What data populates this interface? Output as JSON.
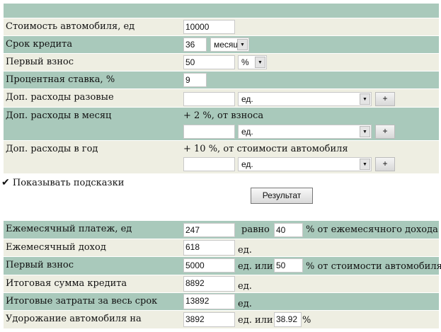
{
  "form": {
    "cost": {
      "label": "Стоимость автомобиля, ед",
      "value": "10000"
    },
    "term": {
      "label": "Срок кредита",
      "value": "36",
      "unit": "месяц"
    },
    "first": {
      "label": "Первый взнос",
      "value": "50",
      "unit": "%"
    },
    "rate": {
      "label": "Процентная ставка, %",
      "value": "9"
    },
    "once": {
      "label": "Доп. расходы разовые",
      "value": "",
      "unit": "ед.",
      "add": "+"
    },
    "monthly": {
      "label": "Доп. расходы в месяц",
      "hint": "+ 2 %, от взноса",
      "value": "",
      "unit": "ед.",
      "add": "+"
    },
    "yearly": {
      "label": "Доп. расходы в год",
      "hint": "+ 10 %, от стоимости автомобиля",
      "value": "",
      "unit": "ед.",
      "add": "+"
    }
  },
  "show_hints": {
    "label": "Показывать подсказки",
    "checked": true
  },
  "result_button": "Результат",
  "results": {
    "payment": {
      "label": "Ежемесячный платеж, ед",
      "value": "247",
      "mid": "равно",
      "pct": "40",
      "suffix": "% от ежемесячного дохода"
    },
    "income": {
      "label": "Ежемесячный доход",
      "value": "618",
      "unit": "ед."
    },
    "first": {
      "label": "Первый взнос",
      "value": "5000",
      "mid": "ед. или",
      "pct": "50",
      "suffix": "% от стоимости автомобиля"
    },
    "loan": {
      "label": "Итоговая сумма кредита",
      "value": "8892",
      "unit": "ед."
    },
    "total": {
      "label": "Итоговые затраты за весь срок",
      "value": "13892",
      "unit": "ед."
    },
    "overpay": {
      "label": "Удорожание автомобиля на",
      "value": "3892",
      "mid": "ед. или",
      "pct": "38.92",
      "suffix": "%"
    }
  }
}
